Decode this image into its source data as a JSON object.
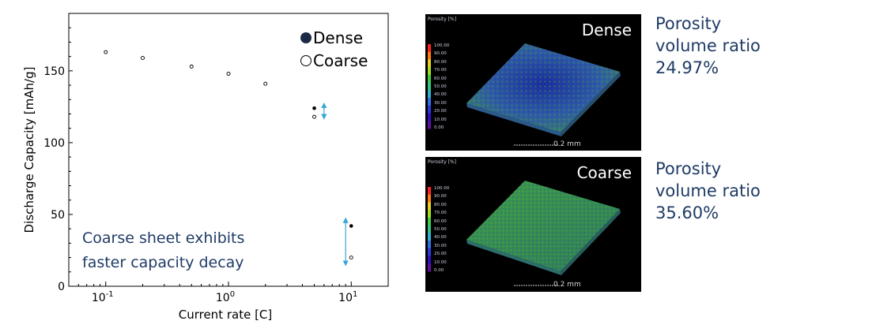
{
  "chart_data": {
    "type": "scatter",
    "xscale": "log",
    "xlim": [
      0.05,
      20
    ],
    "ylim": [
      0,
      190
    ],
    "xlabel": "Current rate [C]",
    "ylabel": "Discharge Capacity [mAh/g]",
    "y_ticks": [
      "0",
      "50",
      "100",
      "150"
    ],
    "x_tick_labels": [
      {
        "base": "10",
        "exp": "-1"
      },
      {
        "base": "10",
        "exp": "0"
      },
      {
        "base": "10",
        "exp": "1"
      }
    ],
    "legend_position": "top-right",
    "series": [
      {
        "name": "Dense",
        "marker": "filled",
        "points": [
          [
            0.1,
            163
          ],
          [
            0.2,
            159
          ],
          [
            0.5,
            153
          ],
          [
            1,
            148
          ],
          [
            2,
            141
          ],
          [
            5,
            124
          ],
          [
            10,
            42
          ]
        ]
      },
      {
        "name": "Coarse",
        "marker": "open",
        "points": [
          [
            0.1,
            163
          ],
          [
            0.2,
            159
          ],
          [
            0.5,
            153
          ],
          [
            1,
            148
          ],
          [
            2,
            141
          ],
          [
            5,
            118
          ],
          [
            10,
            20
          ]
        ]
      }
    ],
    "annotation": {
      "lines": [
        "Coarse sheet exhibits",
        "faster capacity decay"
      ],
      "arrows": [
        {
          "x": 6,
          "y_from": 118,
          "y_to": 126
        },
        {
          "x": 9,
          "y_from": 16,
          "y_to": 46
        }
      ]
    }
  },
  "panels": [
    {
      "label": "Dense",
      "scale_bar": "0.2 mm",
      "legend_title": "Porosity [%]",
      "legend_ticks": [
        "100.00",
        "90.00",
        "80.00",
        "70.00",
        "60.00",
        "50.00",
        "40.00",
        "30.00",
        "20.00",
        "10.00",
        "0.00"
      ],
      "porosity_lines": [
        "Porosity",
        "volume ratio",
        "24.97%"
      ]
    },
    {
      "label": "Coarse",
      "scale_bar": "0.2 mm",
      "legend_title": "Porosity [%]",
      "legend_ticks": [
        "100.00",
        "90.00",
        "80.00",
        "70.00",
        "60.00",
        "50.00",
        "40.00",
        "30.00",
        "20.00",
        "10.00",
        "0.00"
      ],
      "porosity_lines": [
        "Porosity",
        "volume ratio",
        "35.60%"
      ]
    }
  ],
  "colors": {
    "annotation_arrow": "#35a7d8",
    "porosity_text": "#1f3b66",
    "panel_bg": "#000000"
  }
}
